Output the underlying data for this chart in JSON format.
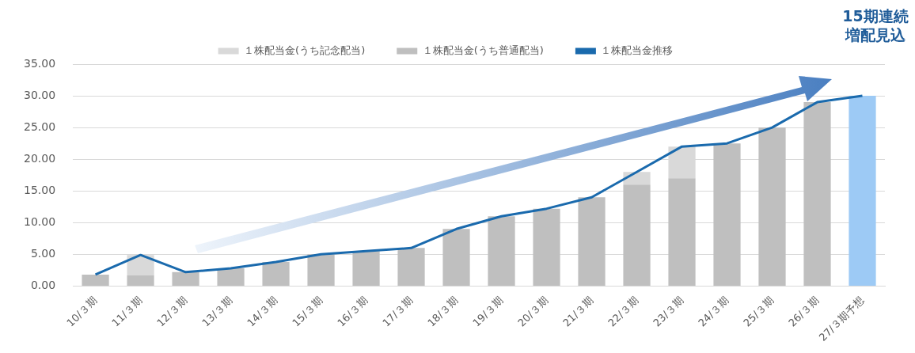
{
  "chart_data": {
    "type": "bar",
    "stacked": true,
    "categories": [
      "10/３期",
      "11/３期",
      "12/３期",
      "13/３期",
      "14/３期",
      "15/３期",
      "16/３期",
      "17/３期",
      "18/３期",
      "19/３期",
      "20/３期",
      "21/３期",
      "22/３期",
      "23/３期",
      "24/３期",
      "25/３期",
      "26/３期",
      "27/３期予想"
    ],
    "series": [
      {
        "name": "１株配当金(うち普通配当)",
        "color": "#bfbfbf",
        "colors": [
          "#bfbfbf",
          "#bfbfbf",
          "#bfbfbf",
          "#bfbfbf",
          "#bfbfbf",
          "#bfbfbf",
          "#bfbfbf",
          "#bfbfbf",
          "#bfbfbf",
          "#bfbfbf",
          "#bfbfbf",
          "#bfbfbf",
          "#bfbfbf",
          "#bfbfbf",
          "#bfbfbf",
          "#bfbfbf",
          "#bfbfbf",
          "#9dcaf5"
        ],
        "values": [
          1.8,
          1.7,
          2.2,
          2.8,
          3.8,
          5,
          5.5,
          6,
          9,
          11,
          12.2,
          14,
          16,
          17,
          22.5,
          25,
          29,
          30
        ]
      },
      {
        "name": "１株配当金(うち記念配当)",
        "color": "#d9d9d9",
        "values": [
          null,
          3.2,
          null,
          null,
          null,
          null,
          null,
          null,
          null,
          null,
          null,
          null,
          2,
          5,
          null,
          null,
          null,
          null
        ]
      },
      {
        "name": "１株配当金推移",
        "type": "line",
        "color": "#1a6aad",
        "values": [
          1.8,
          4.9,
          2.2,
          2.8,
          3.8,
          5,
          5.5,
          6,
          9,
          11,
          12.2,
          14,
          18,
          22,
          22.5,
          25,
          29,
          30
        ]
      }
    ],
    "ylim": [
      0,
      35
    ],
    "yticks": [
      {
        "value": 0,
        "label": "0.00"
      },
      {
        "value": 5,
        "label": "5.00"
      },
      {
        "value": 10,
        "label": "10.00"
      },
      {
        "value": 15,
        "label": "15.00"
      },
      {
        "value": 20,
        "label": "20.00"
      },
      {
        "value": 25,
        "label": "25.00"
      },
      {
        "value": 30,
        "label": "30.00"
      },
      {
        "value": 35,
        "label": "35.00"
      }
    ],
    "grid": "y",
    "legend": "top",
    "marker": "none",
    "line_style": "solid",
    "annotations": [
      "15期連続増配見込"
    ]
  }
}
